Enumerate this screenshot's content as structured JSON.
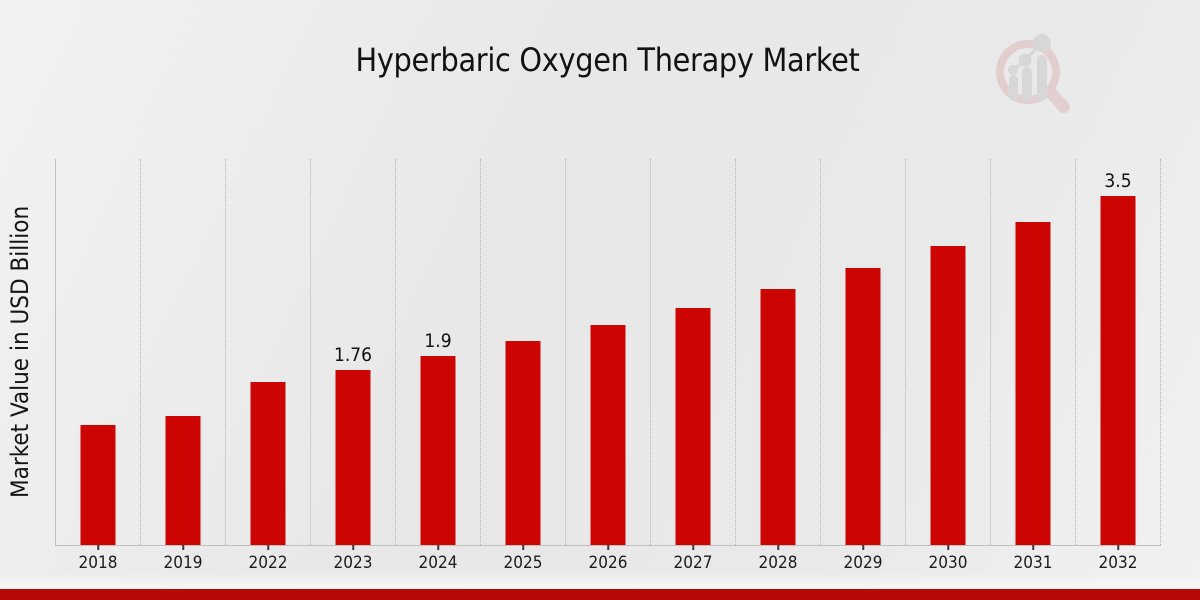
{
  "chart_data": {
    "type": "bar",
    "title": "Hyperbaric Oxygen Therapy Market",
    "ylabel": "Market Value in USD Billion",
    "xlabel": "",
    "categories": [
      "2018",
      "2019",
      "2022",
      "2023",
      "2024",
      "2025",
      "2026",
      "2027",
      "2028",
      "2029",
      "2030",
      "2031",
      "2032"
    ],
    "values": [
      1.21,
      1.3,
      1.64,
      1.76,
      1.9,
      2.05,
      2.21,
      2.38,
      2.57,
      2.78,
      3.0,
      3.24,
      3.5
    ],
    "bar_labels": [
      "",
      "",
      "",
      "1.76",
      "1.9",
      "",
      "",
      "",
      "",
      "",
      "",
      "",
      "3.5"
    ],
    "ylim": [
      0,
      3.86
    ],
    "grid": "vertical-dotted",
    "legend": "none"
  },
  "colors": {
    "bar": "#cc0402",
    "banner": "#b70808",
    "axis": "#bfbfbf",
    "grid": "#b5b5b5",
    "text": "#1a1a1a",
    "watermark_pink": "#dcb9b9",
    "watermark_gray": "#c9c9c9"
  },
  "watermark": {
    "icon": "magnifier-bar-chart-logo"
  }
}
